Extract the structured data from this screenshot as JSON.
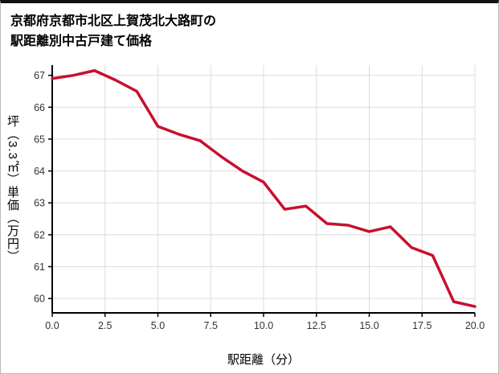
{
  "title": {
    "line1": "京都府京都市北区上賀茂北大路町の",
    "line2": "駅距離別中古戸建て価格"
  },
  "chart_data": {
    "type": "line",
    "title": "京都府京都市北区上賀茂北大路町の駅距離別中古戸建て価格",
    "xlabel": "駅距離（分）",
    "ylabel": "坪（3.3㎡）単価（万円）",
    "x": [
      0,
      1,
      2,
      3,
      4,
      5,
      6,
      7,
      8,
      9,
      10,
      11,
      12,
      13,
      14,
      15,
      16,
      17,
      18,
      19,
      20
    ],
    "values": [
      66.9,
      67.0,
      67.15,
      66.85,
      66.5,
      65.4,
      65.15,
      64.95,
      64.45,
      64.0,
      63.65,
      62.8,
      62.9,
      62.35,
      62.3,
      62.1,
      62.25,
      61.6,
      61.35,
      59.9,
      59.75
    ],
    "xlim": [
      0,
      20
    ],
    "ylim": [
      59.55,
      67.32
    ],
    "x_ticks": [
      0,
      2.5,
      5,
      7.5,
      10,
      12.5,
      15,
      17.5,
      20
    ],
    "x_tick_decimals": 1,
    "y_ticks": [
      60,
      61,
      62,
      63,
      64,
      65,
      66,
      67
    ],
    "grid": true,
    "legend": "none",
    "line_color": "#c8102e",
    "grid_color": "#dcdcdc",
    "axis_color": "#000000",
    "tick_label_color": "#333333"
  }
}
